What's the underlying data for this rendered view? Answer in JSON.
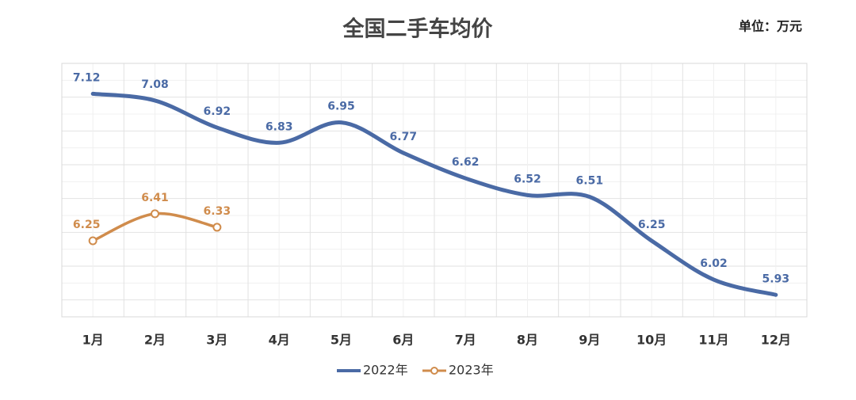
{
  "chart_data": {
    "type": "line",
    "title": "全国二手车均价",
    "unit_note": "单位：万元",
    "categories": [
      "1月",
      "2月",
      "3月",
      "4月",
      "5月",
      "6月",
      "7月",
      "8月",
      "9月",
      "10月",
      "11月",
      "12月"
    ],
    "series": [
      {
        "name": "2022年",
        "color": "#4a6aa5",
        "values": [
          7.12,
          7.08,
          6.92,
          6.83,
          6.95,
          6.77,
          6.62,
          6.52,
          6.51,
          6.25,
          6.02,
          5.93
        ]
      },
      {
        "name": "2023年",
        "color": "#d08c4c",
        "values": [
          6.25,
          6.41,
          6.33,
          null,
          null,
          null,
          null,
          null,
          null,
          null,
          null,
          null
        ]
      }
    ],
    "ylim": [
      5.8,
      7.3
    ],
    "grid": true,
    "legend": "bottom"
  }
}
